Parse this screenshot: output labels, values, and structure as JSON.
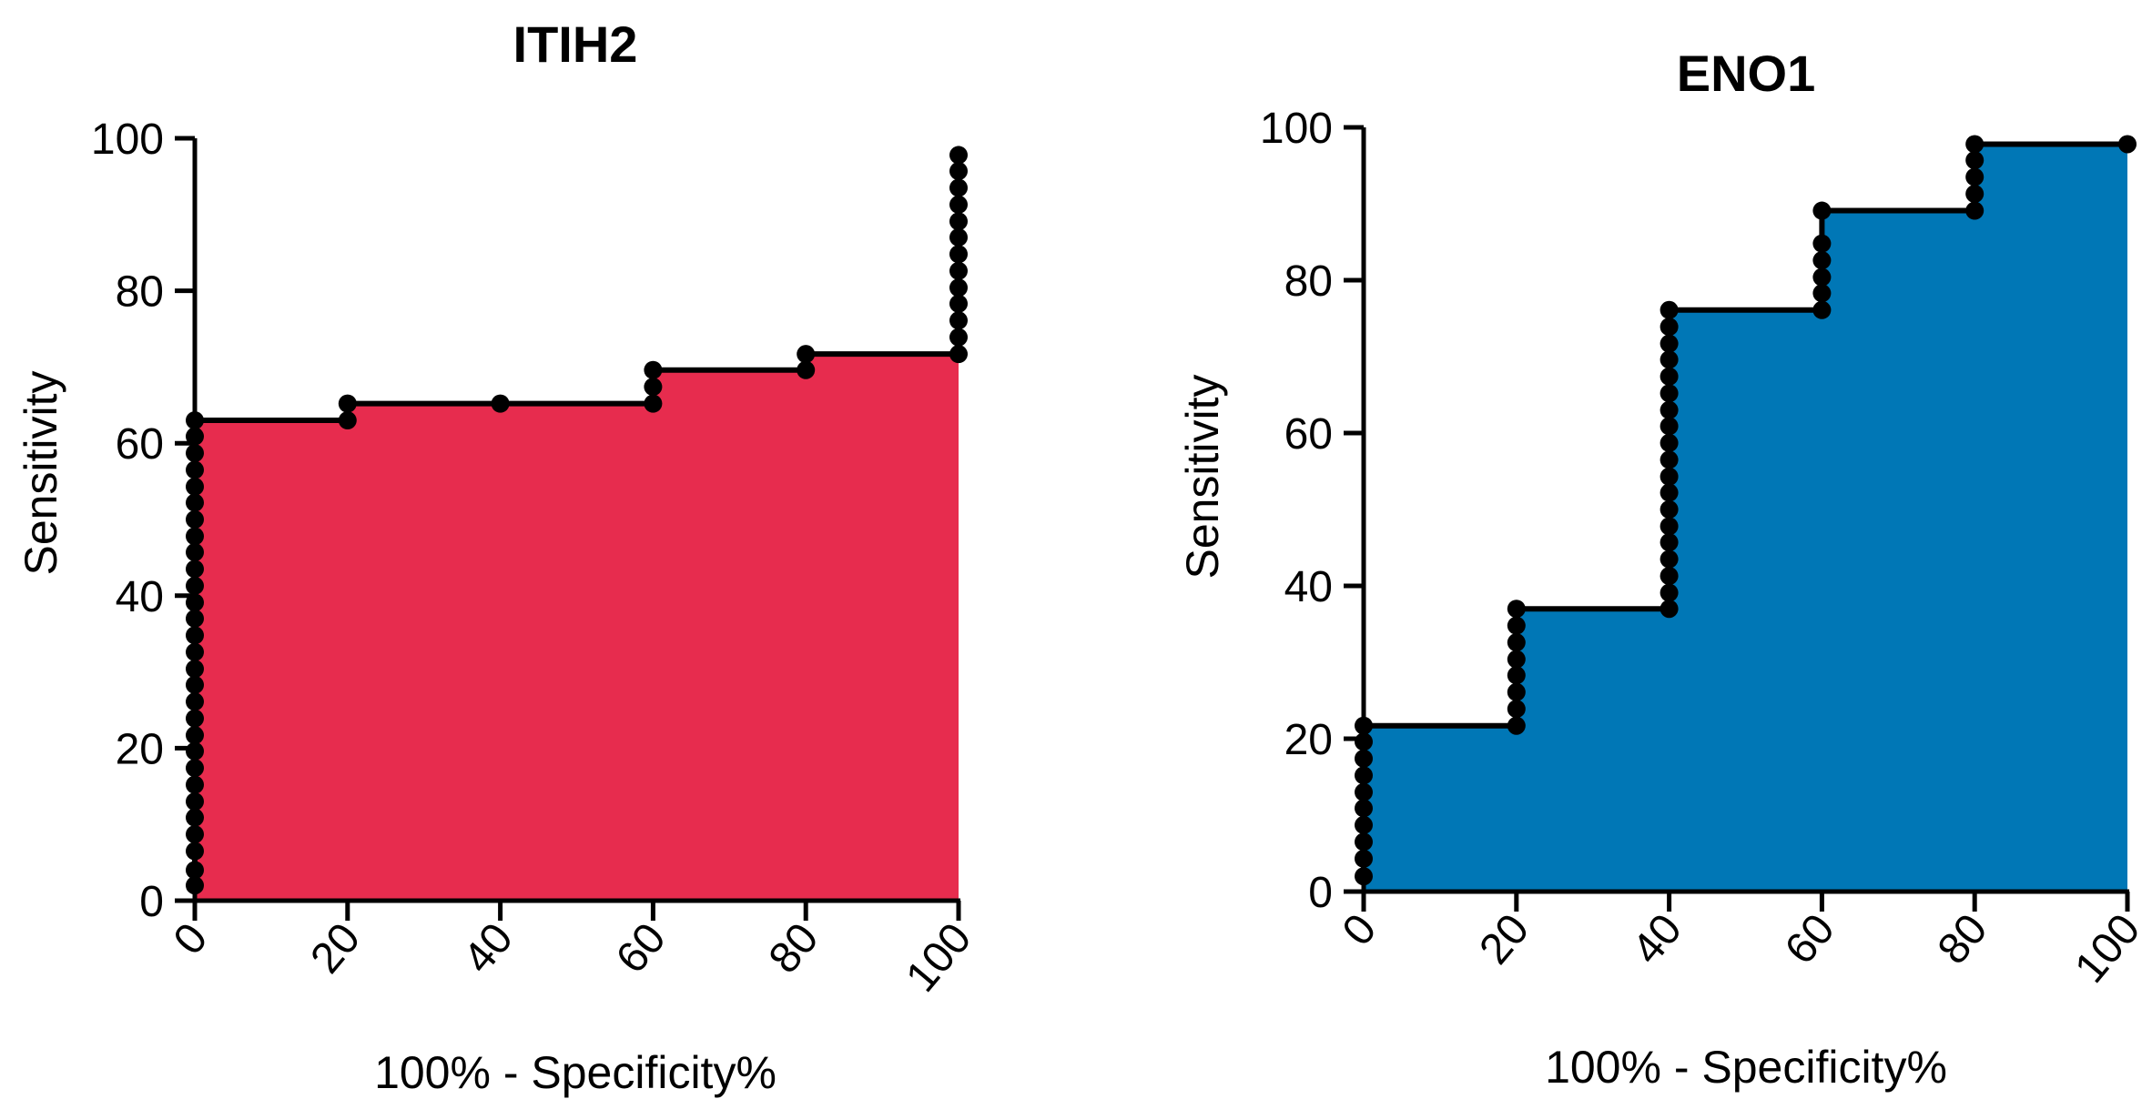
{
  "chart_data": [
    {
      "type": "area",
      "title": "ITIH2",
      "xlabel": "100% - Specificity%",
      "ylabel": "Sensitivity",
      "xlim": [
        0,
        100
      ],
      "ylim": [
        0,
        100
      ],
      "x_ticks": [
        "0",
        "20",
        "40",
        "60",
        "80",
        "100"
      ],
      "y_ticks": [
        "0",
        "20",
        "40",
        "60",
        "80",
        "100"
      ],
      "fill_color": "#e72c4e",
      "points": [
        [
          0,
          2
        ],
        [
          0,
          4
        ],
        [
          0,
          6.5
        ],
        [
          0,
          8.7
        ],
        [
          0,
          10.9
        ],
        [
          0,
          13
        ],
        [
          0,
          15.2
        ],
        [
          0,
          17.4
        ],
        [
          0,
          19.6
        ],
        [
          0,
          21.7
        ],
        [
          0,
          23.9
        ],
        [
          0,
          26.1
        ],
        [
          0,
          28.3
        ],
        [
          0,
          30.4
        ],
        [
          0,
          32.6
        ],
        [
          0,
          34.8
        ],
        [
          0,
          37
        ],
        [
          0,
          39.1
        ],
        [
          0,
          41.3
        ],
        [
          0,
          43.5
        ],
        [
          0,
          45.7
        ],
        [
          0,
          47.8
        ],
        [
          0,
          50
        ],
        [
          0,
          52.2
        ],
        [
          0,
          54.3
        ],
        [
          0,
          56.5
        ],
        [
          0,
          58.7
        ],
        [
          0,
          60.9
        ],
        [
          0,
          63
        ],
        [
          20,
          63
        ],
        [
          20,
          65.2
        ],
        [
          40,
          65.2
        ],
        [
          60,
          65.2
        ],
        [
          60,
          67.4
        ],
        [
          60,
          69.6
        ],
        [
          80,
          69.6
        ],
        [
          80,
          71.7
        ],
        [
          100,
          71.7
        ],
        [
          100,
          73.9
        ],
        [
          100,
          76.1
        ],
        [
          100,
          78.3
        ],
        [
          100,
          80.4
        ],
        [
          100,
          82.6
        ],
        [
          100,
          84.8
        ],
        [
          100,
          87
        ],
        [
          100,
          89.1
        ],
        [
          100,
          91.3
        ],
        [
          100,
          93.5
        ],
        [
          100,
          95.7
        ],
        [
          100,
          97.8
        ]
      ]
    },
    {
      "type": "area",
      "title": "ENO1",
      "xlabel": "100% - Specificity%",
      "ylabel": "Sensitivity",
      "xlim": [
        0,
        100
      ],
      "ylim": [
        0,
        100
      ],
      "x_ticks": [
        "0",
        "20",
        "40",
        "60",
        "80",
        "100"
      ],
      "y_ticks": [
        "0",
        "20",
        "40",
        "60",
        "80",
        "100"
      ],
      "fill_color": "#0077b6",
      "points": [
        [
          0,
          2
        ],
        [
          0,
          4.3
        ],
        [
          0,
          6.5
        ],
        [
          0,
          8.7
        ],
        [
          0,
          10.9
        ],
        [
          0,
          13
        ],
        [
          0,
          15.2
        ],
        [
          0,
          17.4
        ],
        [
          0,
          19.6
        ],
        [
          0,
          21.7
        ],
        [
          20,
          21.7
        ],
        [
          20,
          23.9
        ],
        [
          20,
          26.1
        ],
        [
          20,
          28.3
        ],
        [
          20,
          30.4
        ],
        [
          20,
          32.6
        ],
        [
          20,
          34.8
        ],
        [
          20,
          37
        ],
        [
          40,
          37
        ],
        [
          40,
          39.1
        ],
        [
          40,
          41.3
        ],
        [
          40,
          43.5
        ],
        [
          40,
          45.7
        ],
        [
          40,
          47.8
        ],
        [
          40,
          50
        ],
        [
          40,
          52.2
        ],
        [
          40,
          54.3
        ],
        [
          40,
          56.5
        ],
        [
          40,
          58.7
        ],
        [
          40,
          60.9
        ],
        [
          40,
          63
        ],
        [
          40,
          65.2
        ],
        [
          40,
          67.4
        ],
        [
          40,
          69.6
        ],
        [
          40,
          71.7
        ],
        [
          40,
          73.9
        ],
        [
          40,
          76.1
        ],
        [
          60,
          76.1
        ],
        [
          60,
          78.3
        ],
        [
          60,
          80.4
        ],
        [
          60,
          82.6
        ],
        [
          60,
          84.8
        ],
        [
          60,
          89.1
        ],
        [
          80,
          89.1
        ],
        [
          80,
          91.3
        ],
        [
          80,
          93.5
        ],
        [
          80,
          95.7
        ],
        [
          80,
          97.8
        ],
        [
          100,
          97.8
        ]
      ]
    }
  ]
}
